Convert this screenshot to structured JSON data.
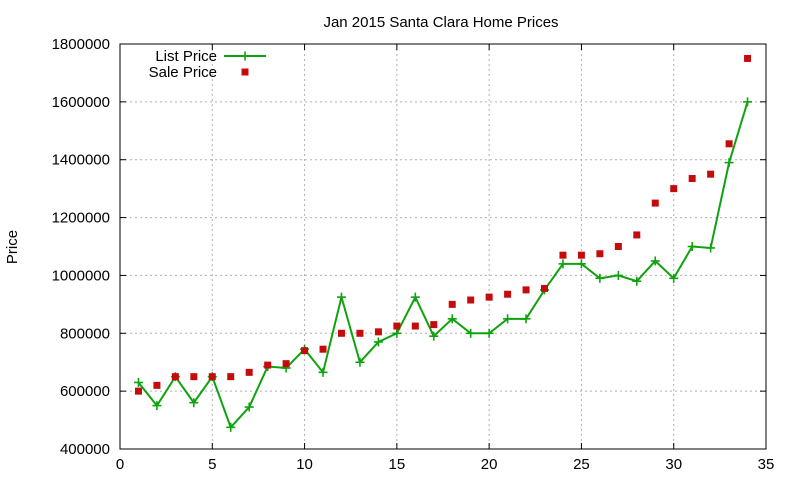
{
  "chart_data": {
    "type": "line",
    "title": "Jan 2015 Santa Clara Home Prices",
    "xlabel": "",
    "ylabel": "Price",
    "xlim": [
      0,
      35
    ],
    "ylim": [
      400000,
      1800000
    ],
    "xticks": [
      0,
      5,
      10,
      15,
      20,
      25,
      30,
      35
    ],
    "yticks": [
      400000,
      600000,
      800000,
      1000000,
      1200000,
      1400000,
      1600000,
      1800000
    ],
    "xtick_labels": [
      "0",
      "5",
      "10",
      "15",
      "20",
      "25",
      "30",
      "35"
    ],
    "ytick_labels": [
      "400000",
      "600000",
      "800000",
      "1000000",
      "1200000",
      "1400000",
      "1600000",
      "1800000"
    ],
    "grid": true,
    "legend_position": "top-left",
    "series": [
      {
        "name": "List Price",
        "style": "linespoints",
        "marker": "plus",
        "color": "#0ea30e",
        "x": [
          1,
          2,
          3,
          4,
          5,
          6,
          7,
          8,
          9,
          10,
          11,
          12,
          13,
          14,
          15,
          16,
          17,
          18,
          19,
          20,
          21,
          22,
          23,
          24,
          25,
          26,
          27,
          28,
          29,
          30,
          31,
          32,
          33,
          34
        ],
        "values": [
          630000,
          550000,
          650000,
          560000,
          650000,
          475000,
          545000,
          685000,
          680000,
          745000,
          665000,
          925000,
          700000,
          770000,
          800000,
          925000,
          790000,
          850000,
          800000,
          800000,
          850000,
          850000,
          950000,
          1040000,
          1040000,
          990000,
          1000000,
          980000,
          1050000,
          990000,
          1100000,
          1095000,
          1390000,
          1600000
        ]
      },
      {
        "name": "Sale Price",
        "style": "points",
        "marker": "square",
        "color": "#c40c0c",
        "x": [
          1,
          2,
          3,
          4,
          5,
          6,
          7,
          8,
          9,
          10,
          11,
          12,
          13,
          14,
          15,
          16,
          17,
          18,
          19,
          20,
          21,
          22,
          23,
          24,
          25,
          26,
          27,
          28,
          29,
          30,
          31,
          32,
          33,
          34
        ],
        "values": [
          600000,
          620000,
          650000,
          650000,
          650000,
          650000,
          665000,
          690000,
          695000,
          740000,
          745000,
          800000,
          800000,
          805000,
          825000,
          825000,
          830000,
          900000,
          915000,
          925000,
          935000,
          950000,
          955000,
          1070000,
          1070000,
          1075000,
          1100000,
          1140000,
          1250000,
          1300000,
          1335000,
          1350000,
          1455000,
          1750000
        ]
      }
    ]
  }
}
